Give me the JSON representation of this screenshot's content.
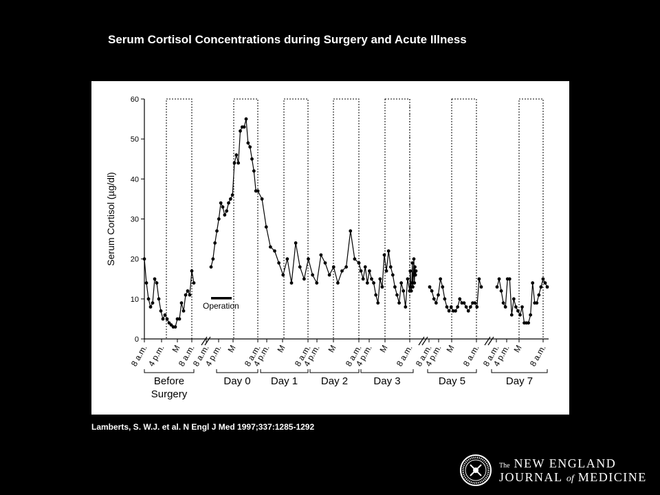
{
  "slide": {
    "title": "Serum Cortisol Concentrations during Surgery and Acute Illness",
    "citation": "Lamberts, S. W.J. et al. N Engl J Med 1997;337:1285-1292"
  },
  "logo": {
    "line1_prefix": "The",
    "line1_main": "NEW ENGLAND",
    "line2_a": "JOURNAL",
    "line2_of": "of",
    "line2_b": "MEDICINE",
    "seal_text": "MASSACHUSETTS MEDICAL SOCIETY"
  },
  "colors": {
    "background": "#000000",
    "panel": "#ffffff",
    "ink": "#000000",
    "text": "#ffffff"
  },
  "chart_data": {
    "type": "line",
    "title": "",
    "ylabel": "Serum Cortisol (µg/dl)",
    "ylim": [
      0,
      60
    ],
    "yticks": [
      0,
      10,
      20,
      30,
      40,
      50,
      60
    ],
    "grid": false,
    "annotation": "Operation",
    "time_ticks": [
      "8 a.m.",
      "4 p.m.",
      "M",
      "8 a.m.",
      "8 a.m.",
      "4 p.m.",
      "M",
      "8 a.m.",
      "4 p.m.",
      "M",
      "8 a.m.",
      "4 p.m.",
      "M",
      "8 a.m.",
      "4 p.m.",
      "M",
      "8 a.m.",
      "8 a.m.",
      "4 p.m.",
      "M",
      "8 a.m.",
      "8 a.m.",
      "4 p.m.",
      "M",
      "8 a.m."
    ],
    "day_groups": [
      "Before Surgery",
      "Day 0",
      "Day 1",
      "Day 2",
      "Day 3",
      "Day 5",
      "Day 7"
    ],
    "x_unit": "hours from 8 a.m. on each observed day; the night periods (midnight to 8 a.m.) are drawn as boxes, breaks (//) separate non-consecutive days",
    "segments": [
      {
        "name": "",
        "x": [
          0,
          1,
          2,
          3,
          4,
          5,
          6,
          7,
          8,
          9,
          10,
          11,
          12,
          13,
          14,
          15,
          16,
          17,
          18,
          19,
          20,
          21,
          22,
          23,
          24
        ],
        "y": [
          20,
          14,
          10,
          8,
          9,
          15,
          14,
          10,
          7,
          5,
          6,
          5,
          4,
          3.5,
          3,
          3,
          5,
          5,
          9,
          7,
          11,
          12,
          11,
          17,
          14
        ]
      },
      {
        "name": "",
        "x": [
          0,
          1,
          2,
          3,
          4,
          5,
          6,
          7,
          8,
          9,
          10,
          11,
          12,
          13,
          14,
          15,
          16,
          17,
          18,
          19,
          20,
          21,
          22,
          23,
          24
        ],
        "y": [
          18,
          20,
          24,
          27,
          30,
          34,
          33,
          31,
          32,
          34,
          35,
          36,
          44,
          46,
          44,
          52,
          53,
          53,
          55,
          49,
          48,
          45,
          42,
          37,
          37
        ]
      },
      {
        "name": "",
        "x": [
          24,
          26,
          28,
          30,
          32,
          34,
          36,
          38,
          40,
          42,
          44,
          46,
          48,
          50,
          52,
          54,
          56,
          58,
          60,
          62,
          64,
          66,
          68,
          70,
          72
        ],
        "y": [
          37,
          35,
          28,
          23,
          22,
          19,
          16,
          20,
          14,
          24,
          18,
          15,
          20,
          16,
          14,
          21,
          19,
          16,
          18,
          14,
          17,
          18,
          27,
          20,
          19
        ]
      },
      {
        "name": "",
        "x": [
          72,
          74,
          76,
          78,
          80,
          82,
          84,
          86,
          88,
          90,
          92,
          94,
          96,
          98,
          100,
          102,
          104,
          106,
          108,
          110,
          112,
          114,
          116,
          118,
          120
        ],
        "y": [
          19,
          17,
          15,
          18,
          14,
          17,
          15,
          14,
          11,
          9,
          15,
          13,
          21,
          17,
          22,
          18,
          16,
          13,
          11,
          9,
          14,
          12,
          8,
          15,
          12
        ]
      },
      {
        "name": "",
        "x": [
          120,
          122,
          124,
          126,
          128,
          130,
          132,
          134,
          136,
          138,
          140,
          142,
          144
        ],
        "y": [
          12,
          17,
          13,
          12,
          14,
          19,
          13,
          16,
          20,
          14,
          18,
          16,
          17
        ]
      },
      {
        "name": "",
        "x": [
          0,
          1,
          2,
          3,
          4,
          5,
          6,
          7,
          8,
          9,
          10,
          11,
          12,
          13,
          14,
          15,
          16,
          17,
          18,
          19,
          20,
          21,
          22,
          23,
          24
        ],
        "y": [
          13,
          12,
          10,
          9,
          11,
          15,
          13,
          10,
          8,
          7,
          8,
          7,
          7,
          8,
          10,
          9,
          9,
          8,
          7,
          8,
          9,
          9,
          8,
          15,
          13
        ]
      },
      {
        "name": "",
        "x": [
          0,
          1,
          2,
          3,
          4,
          5,
          6,
          7,
          8,
          9,
          10,
          11,
          12,
          13,
          14,
          15,
          16,
          17,
          18,
          19,
          20,
          21,
          22,
          23,
          24
        ],
        "y": [
          13,
          15,
          12,
          9,
          8,
          15,
          15,
          6,
          10,
          8,
          7,
          6,
          8,
          4,
          4,
          4,
          6,
          14,
          9,
          9,
          11,
          13,
          15,
          14,
          13
        ]
      }
    ]
  }
}
